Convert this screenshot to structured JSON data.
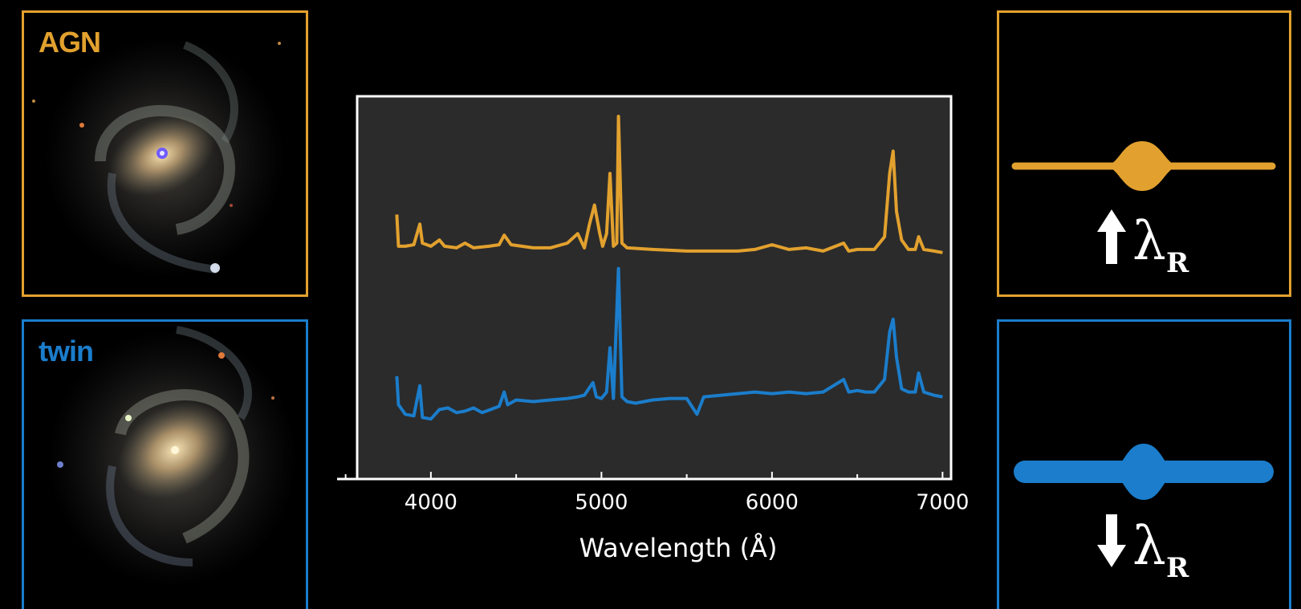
{
  "galaxy_panels": {
    "agn": {
      "label": "AGN",
      "color": "#E2A12E"
    },
    "twin": {
      "label": "twin",
      "color": "#1B7DCB"
    }
  },
  "kinematics": {
    "agn": {
      "arrow": "up-arrow-icon",
      "symbol": "λ",
      "subscript": "R",
      "color": "#E2A12E"
    },
    "twin": {
      "arrow": "down-arrow-icon",
      "symbol": "λ",
      "subscript": "R",
      "color": "#1B7DCB"
    }
  },
  "chart_data": {
    "type": "line",
    "xlabel": "Wavelength (Å)",
    "xlim": [
      3450,
      7050
    ],
    "xticks": [
      4000,
      5000,
      6000,
      7000
    ],
    "ylim": [
      0,
      10
    ],
    "grid": false,
    "series": [
      {
        "color": "#E2A12E",
        "points": [
          [
            3800,
            6.9
          ],
          [
            3810,
            5.9
          ],
          [
            3850,
            5.9
          ],
          [
            3900,
            5.95
          ],
          [
            3935,
            6.6
          ],
          [
            3950,
            6.0
          ],
          [
            4000,
            5.9
          ],
          [
            4050,
            6.1
          ],
          [
            4080,
            5.9
          ],
          [
            4150,
            5.85
          ],
          [
            4200,
            6.0
          ],
          [
            4250,
            5.85
          ],
          [
            4340,
            5.9
          ],
          [
            4400,
            5.95
          ],
          [
            4430,
            6.25
          ],
          [
            4470,
            5.95
          ],
          [
            4600,
            5.85
          ],
          [
            4700,
            5.85
          ],
          [
            4800,
            6.0
          ],
          [
            4861,
            6.3
          ],
          [
            4900,
            5.85
          ],
          [
            4930,
            6.6
          ],
          [
            4959,
            7.2
          ],
          [
            4990,
            6.3
          ],
          [
            5007,
            5.9
          ],
          [
            5030,
            6.3
          ],
          [
            5050,
            8.2
          ],
          [
            5070,
            5.9
          ],
          [
            5090,
            6.0
          ],
          [
            5100,
            10.0
          ],
          [
            5120,
            6.0
          ],
          [
            5150,
            5.85
          ],
          [
            5300,
            5.8
          ],
          [
            5500,
            5.75
          ],
          [
            5800,
            5.75
          ],
          [
            5900,
            5.8
          ],
          [
            6000,
            5.95
          ],
          [
            6100,
            5.8
          ],
          [
            6200,
            5.85
          ],
          [
            6300,
            5.75
          ],
          [
            6420,
            6.0
          ],
          [
            6450,
            5.75
          ],
          [
            6500,
            5.8
          ],
          [
            6600,
            5.8
          ],
          [
            6660,
            6.2
          ],
          [
            6690,
            8.2
          ],
          [
            6710,
            8.9
          ],
          [
            6730,
            7.0
          ],
          [
            6760,
            6.1
          ],
          [
            6800,
            5.8
          ],
          [
            6840,
            5.8
          ],
          [
            6860,
            6.2
          ],
          [
            6890,
            5.8
          ],
          [
            6950,
            5.75
          ],
          [
            7000,
            5.7
          ]
        ]
      },
      {
        "color": "#1B7DCB",
        "points": [
          [
            3800,
            1.8
          ],
          [
            3810,
            0.9
          ],
          [
            3850,
            0.6
          ],
          [
            3900,
            0.55
          ],
          [
            3935,
            1.5
          ],
          [
            3950,
            0.5
          ],
          [
            4000,
            0.45
          ],
          [
            4050,
            0.75
          ],
          [
            4100,
            0.8
          ],
          [
            4150,
            0.65
          ],
          [
            4200,
            0.7
          ],
          [
            4250,
            0.8
          ],
          [
            4300,
            0.65
          ],
          [
            4350,
            0.75
          ],
          [
            4400,
            0.85
          ],
          [
            4430,
            1.3
          ],
          [
            4450,
            0.9
          ],
          [
            4500,
            1.05
          ],
          [
            4600,
            1.0
          ],
          [
            4700,
            1.05
          ],
          [
            4800,
            1.1
          ],
          [
            4861,
            1.15
          ],
          [
            4900,
            1.2
          ],
          [
            4950,
            1.6
          ],
          [
            4970,
            1.15
          ],
          [
            5000,
            1.1
          ],
          [
            5030,
            1.3
          ],
          [
            5050,
            2.7
          ],
          [
            5070,
            1.1
          ],
          [
            5100,
            5.2
          ],
          [
            5120,
            1.15
          ],
          [
            5150,
            1.0
          ],
          [
            5200,
            0.95
          ],
          [
            5300,
            1.05
          ],
          [
            5400,
            1.1
          ],
          [
            5500,
            1.1
          ],
          [
            5560,
            0.6
          ],
          [
            5600,
            1.15
          ],
          [
            5700,
            1.2
          ],
          [
            5800,
            1.25
          ],
          [
            5900,
            1.3
          ],
          [
            6000,
            1.25
          ],
          [
            6100,
            1.3
          ],
          [
            6200,
            1.25
          ],
          [
            6300,
            1.3
          ],
          [
            6420,
            1.7
          ],
          [
            6450,
            1.3
          ],
          [
            6500,
            1.35
          ],
          [
            6550,
            1.3
          ],
          [
            6600,
            1.3
          ],
          [
            6660,
            1.7
          ],
          [
            6690,
            3.2
          ],
          [
            6710,
            3.6
          ],
          [
            6730,
            2.4
          ],
          [
            6760,
            1.4
          ],
          [
            6800,
            1.3
          ],
          [
            6840,
            1.3
          ],
          [
            6860,
            1.9
          ],
          [
            6890,
            1.3
          ],
          [
            6950,
            1.2
          ],
          [
            7000,
            1.15
          ]
        ]
      }
    ]
  }
}
